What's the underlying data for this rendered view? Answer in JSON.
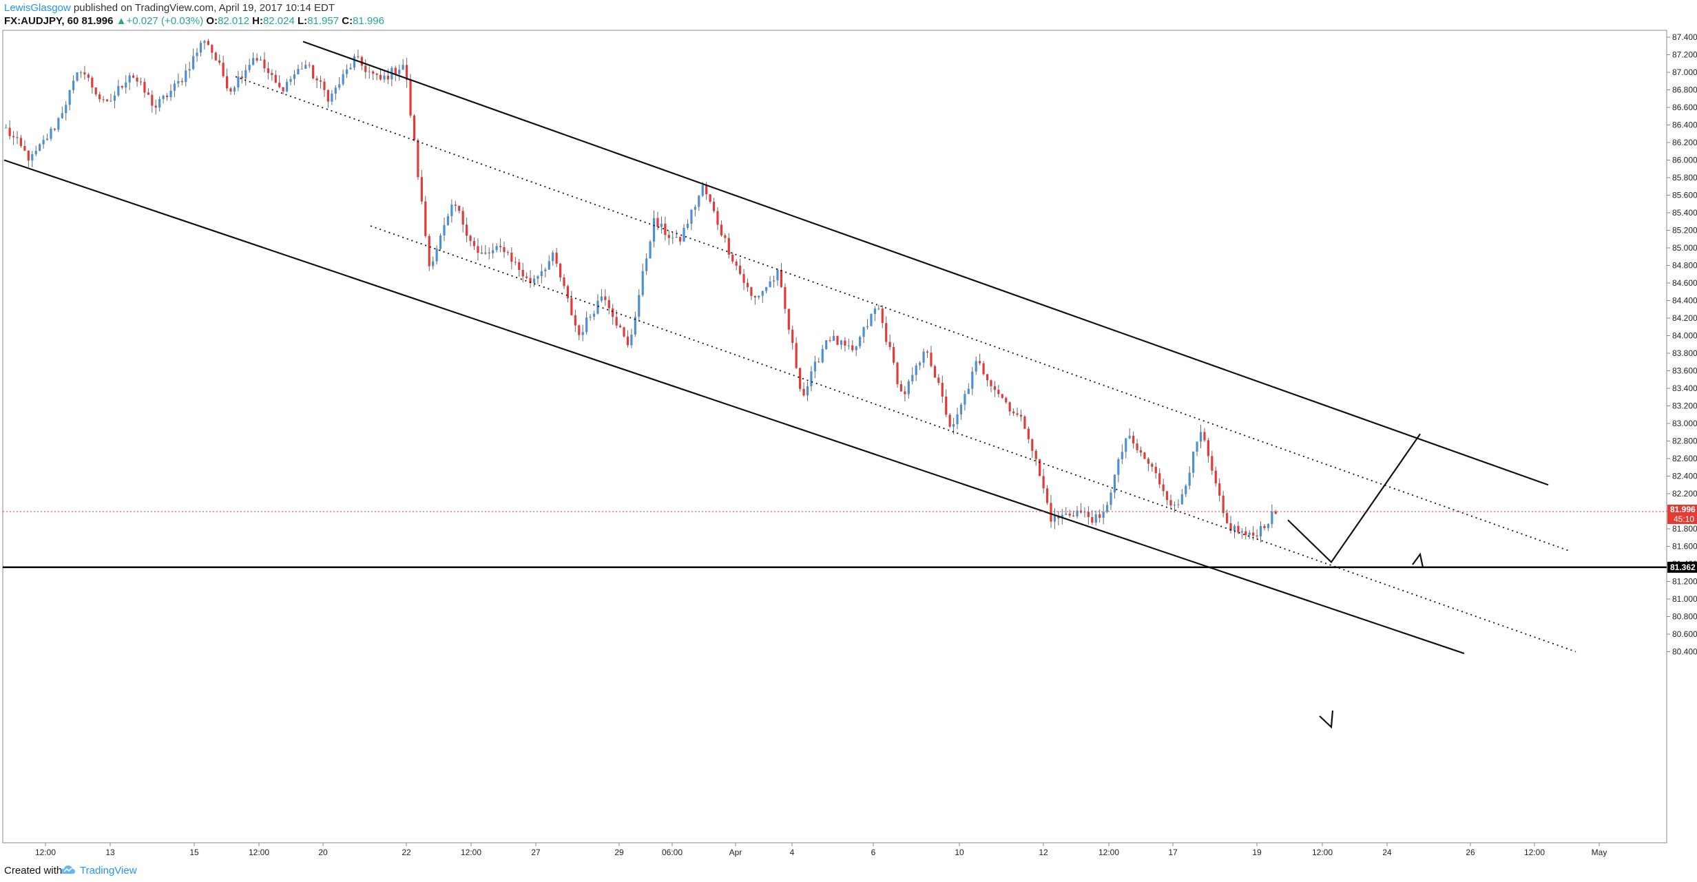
{
  "header": {
    "author": "LewisGlasgow",
    "published_text": "published on TradingView.com, April 19, 2017 10:14 EDT",
    "symbol": "FX:AUDJPY, 60",
    "last": "81.996",
    "change": "+0.027 (+0.03%)",
    "o_label": "O:",
    "o_value": "82.012",
    "h_label": "H:",
    "h_value": "82.024",
    "l_label": "L:",
    "l_value": "81.957",
    "c_label": "C:",
    "c_value": "81.996"
  },
  "footer": {
    "created_with": "Created with",
    "brand": "TradingView"
  },
  "chart_data": {
    "type": "candlestick",
    "symbol": "FX:AUDJPY",
    "interval": "60",
    "ylim": [
      80.3,
      87.5
    ],
    "y_ticks": [
      "87.400",
      "87.200",
      "87.000",
      "86.800",
      "86.600",
      "86.400",
      "86.200",
      "86.000",
      "85.800",
      "85.600",
      "85.400",
      "85.200",
      "85.000",
      "84.800",
      "84.600",
      "84.400",
      "84.200",
      "84.000",
      "83.800",
      "83.600",
      "83.400",
      "83.200",
      "83.000",
      "82.800",
      "82.600",
      "82.400",
      "82.200",
      "82.000",
      "81.800",
      "81.600",
      "81.400",
      "81.200",
      "81.000",
      "80.800",
      "80.600",
      "80.400"
    ],
    "x_ticks": [
      "12:00",
      "13",
      "15",
      "12:00",
      "20",
      "22",
      "12:00",
      "27",
      "29",
      "06:00",
      "Apr",
      "4",
      "6",
      "10",
      "12",
      "12:00",
      "17",
      "19",
      "12:00",
      "24",
      "26",
      "12:00",
      "May"
    ],
    "price_label": {
      "value": "81.996",
      "sub": "45:10",
      "color": "#e53935"
    },
    "horizontal_line": {
      "value": 81.362,
      "label": "81.362"
    },
    "colors": {
      "up": "#4a90d9",
      "down": "#e53935",
      "wick": "#555555",
      "line": "#111111"
    },
    "grid": false,
    "anchors": [
      86.35,
      86.0,
      86.4,
      87.05,
      86.6,
      87.0,
      86.6,
      86.9,
      87.4,
      86.8,
      87.2,
      86.8,
      87.1,
      86.7,
      87.15,
      86.9,
      87.1,
      84.8,
      85.5,
      84.9,
      85.0,
      84.6,
      84.9,
      84.0,
      84.5,
      83.85,
      85.3,
      85.05,
      85.7,
      85.0,
      84.4,
      84.7,
      83.3,
      84.0,
      83.8,
      84.35,
      83.3,
      83.85,
      82.9,
      83.7,
      83.3,
      82.95,
      81.9,
      82.0,
      81.88,
      82.85,
      82.5,
      82.0,
      82.9,
      81.85,
      81.7,
      81.98
    ],
    "trend_lines": [
      {
        "style": "solid",
        "from": [
          "12 Mar",
          86.0
        ],
        "to": [
          "26 Apr",
          80.38
        ]
      },
      {
        "style": "solid",
        "from": [
          "20 Mar",
          87.35
        ],
        "to": [
          "24 Apr",
          82.3
        ]
      },
      {
        "style": "dotted",
        "from": [
          "15 Mar",
          86.95
        ],
        "to": [
          "26 Apr",
          81.55
        ]
      },
      {
        "style": "dotted",
        "from": [
          "22 Mar",
          85.25
        ],
        "to": [
          "26 Apr",
          80.4
        ]
      }
    ],
    "projection": [
      [
        "19 Apr 06:00",
        81.9
      ],
      [
        "20 Apr 12:00",
        81.42
      ],
      [
        "21 Apr 12:00",
        82.88
      ]
    ]
  }
}
